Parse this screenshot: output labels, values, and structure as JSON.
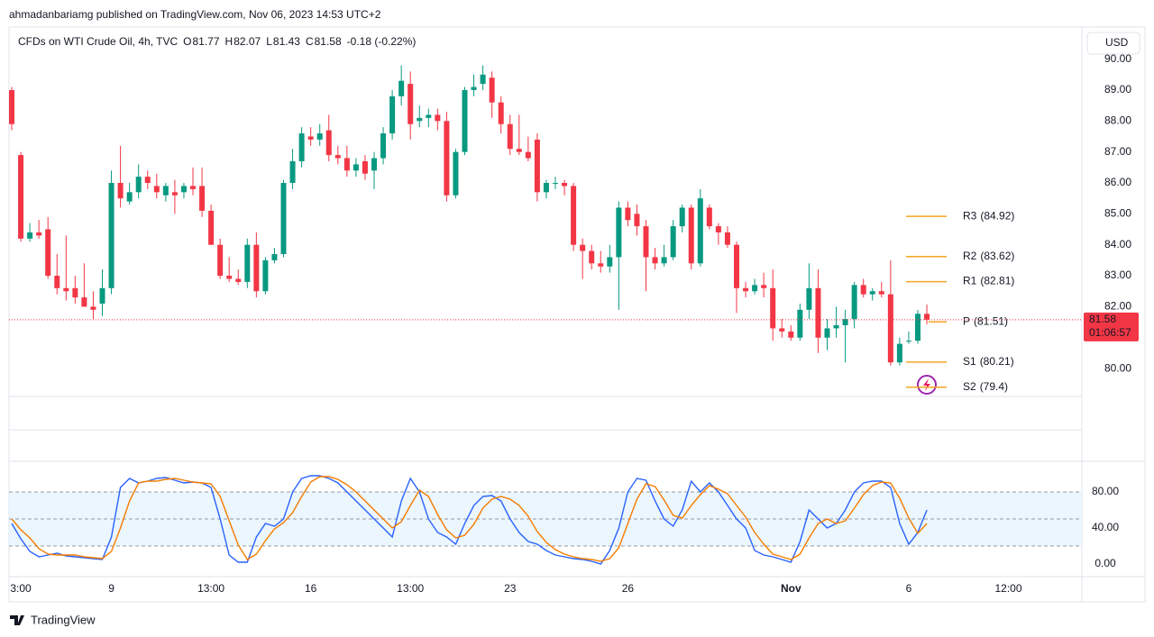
{
  "header": {
    "published": "ahmadanbariamg published on TradingView.com, Nov 06, 2023 14:53 UTC+2",
    "symbol": "CFDs on WTI Crude Oil, 4h, TVC",
    "legend": [
      {
        "key": "O",
        "value": 81.77
      },
      {
        "key": "H",
        "value": 82.07
      },
      {
        "key": "L",
        "value": 81.43
      },
      {
        "key": "C",
        "value": 81.58
      }
    ],
    "change": "-0.18 (-0.22%)",
    "currency": "USD"
  },
  "footer": {
    "brand": "TradingView"
  },
  "chart_data": [
    {
      "type": "candlestick",
      "up_color": "#089981",
      "down_color": "#f23645",
      "candles": [
        [
          89.0,
          89.1,
          87.7,
          87.9
        ],
        [
          86.9,
          87.0,
          84.1,
          84.2
        ],
        [
          84.2,
          84.7,
          84.1,
          84.4
        ],
        [
          84.4,
          84.8,
          84.2,
          84.3
        ],
        [
          84.5,
          84.9,
          82.9,
          83.0
        ],
        [
          83.0,
          83.7,
          82.4,
          82.6
        ],
        [
          82.6,
          84.3,
          82.2,
          82.5
        ],
        [
          82.6,
          83.0,
          82.1,
          82.3
        ],
        [
          82.3,
          83.4,
          82.0,
          82.0
        ],
        [
          82.0,
          82.5,
          81.6,
          81.9
        ],
        [
          82.1,
          83.2,
          81.7,
          82.6
        ],
        [
          82.6,
          86.4,
          82.4,
          86.0
        ],
        [
          86.0,
          87.2,
          85.2,
          85.5
        ],
        [
          85.4,
          86.0,
          85.3,
          85.7
        ],
        [
          85.7,
          86.6,
          85.5,
          86.2
        ],
        [
          86.2,
          86.4,
          85.8,
          86.0
        ],
        [
          85.9,
          86.3,
          85.5,
          85.7
        ],
        [
          85.6,
          86.0,
          85.4,
          85.9
        ],
        [
          85.7,
          86.1,
          85.0,
          85.6
        ],
        [
          85.7,
          86.0,
          85.5,
          85.9
        ],
        [
          85.9,
          86.5,
          85.6,
          85.8
        ],
        [
          85.9,
          86.5,
          84.9,
          85.1
        ],
        [
          85.1,
          85.3,
          84.0,
          84.0
        ],
        [
          84.0,
          84.2,
          82.9,
          83.0
        ],
        [
          83.0,
          83.6,
          82.8,
          82.9
        ],
        [
          82.9,
          83.2,
          82.7,
          82.8
        ],
        [
          82.8,
          84.2,
          82.6,
          84.0
        ],
        [
          84.0,
          84.4,
          82.3,
          82.5
        ],
        [
          82.5,
          83.6,
          82.4,
          83.5
        ],
        [
          83.5,
          83.9,
          83.4,
          83.7
        ],
        [
          83.7,
          86.1,
          83.6,
          86.0
        ],
        [
          86.0,
          87.1,
          85.8,
          86.7
        ],
        [
          86.7,
          87.8,
          86.5,
          87.6
        ],
        [
          87.5,
          87.8,
          87.2,
          87.4
        ],
        [
          87.4,
          87.9,
          87.2,
          87.6
        ],
        [
          87.7,
          88.2,
          86.7,
          86.9
        ],
        [
          86.9,
          87.2,
          86.6,
          86.8
        ],
        [
          86.8,
          87.2,
          86.2,
          86.4
        ],
        [
          86.4,
          86.8,
          86.2,
          86.6
        ],
        [
          86.7,
          86.9,
          86.1,
          86.3
        ],
        [
          86.4,
          87.0,
          85.8,
          86.8
        ],
        [
          86.8,
          87.8,
          86.6,
          87.6
        ],
        [
          87.6,
          89.0,
          87.4,
          88.8
        ],
        [
          88.8,
          89.8,
          88.5,
          89.3
        ],
        [
          89.2,
          89.6,
          87.4,
          87.9
        ],
        [
          88.0,
          88.5,
          87.8,
          88.1
        ],
        [
          88.1,
          88.4,
          87.8,
          88.2
        ],
        [
          88.2,
          88.4,
          87.7,
          88.0
        ],
        [
          88.0,
          88.3,
          85.4,
          85.6
        ],
        [
          85.6,
          87.1,
          85.5,
          87.0
        ],
        [
          87.0,
          89.1,
          86.9,
          89.0
        ],
        [
          89.0,
          89.5,
          88.8,
          89.1
        ],
        [
          89.2,
          89.8,
          89.0,
          89.5
        ],
        [
          89.4,
          89.6,
          88.1,
          88.6
        ],
        [
          88.6,
          88.8,
          87.6,
          87.9
        ],
        [
          87.9,
          88.2,
          86.9,
          87.1
        ],
        [
          87.1,
          88.2,
          86.9,
          87.0
        ],
        [
          87.0,
          87.5,
          86.7,
          86.8
        ],
        [
          87.4,
          87.6,
          85.4,
          85.7
        ],
        [
          85.7,
          86.1,
          85.5,
          86.0
        ],
        [
          86.0,
          86.2,
          85.8,
          86.0
        ],
        [
          86.0,
          86.1,
          85.6,
          85.9
        ],
        [
          85.9,
          86.0,
          83.8,
          84.0
        ],
        [
          84.0,
          84.2,
          82.9,
          83.8
        ],
        [
          83.8,
          84.0,
          83.2,
          83.4
        ],
        [
          83.4,
          83.8,
          83.1,
          83.3
        ],
        [
          83.3,
          84.0,
          83.1,
          83.6
        ],
        [
          83.6,
          85.4,
          81.9,
          85.2
        ],
        [
          85.2,
          85.4,
          84.6,
          84.8
        ],
        [
          85.0,
          85.3,
          84.3,
          84.6
        ],
        [
          84.6,
          84.8,
          82.5,
          83.6
        ],
        [
          83.6,
          83.9,
          83.2,
          83.4
        ],
        [
          83.4,
          84.0,
          83.3,
          83.6
        ],
        [
          83.6,
          84.8,
          83.5,
          84.6
        ],
        [
          84.6,
          85.3,
          84.4,
          85.2
        ],
        [
          85.2,
          85.3,
          83.2,
          83.4
        ],
        [
          83.4,
          85.8,
          83.3,
          85.5
        ],
        [
          85.2,
          85.3,
          84.5,
          84.6
        ],
        [
          84.6,
          84.7,
          84.0,
          84.4
        ],
        [
          84.4,
          84.6,
          83.9,
          84.0
        ],
        [
          84.0,
          84.1,
          81.8,
          82.6
        ],
        [
          82.6,
          82.8,
          82.3,
          82.5
        ],
        [
          82.5,
          82.9,
          82.4,
          82.7
        ],
        [
          82.7,
          83.1,
          82.3,
          82.6
        ],
        [
          82.6,
          83.2,
          80.9,
          81.3
        ],
        [
          81.3,
          81.6,
          81.0,
          81.2
        ],
        [
          81.2,
          81.4,
          80.9,
          81.0
        ],
        [
          81.0,
          82.1,
          80.9,
          81.9
        ],
        [
          81.9,
          83.4,
          81.6,
          82.6
        ],
        [
          82.6,
          83.2,
          80.5,
          81.0
        ],
        [
          81.0,
          81.6,
          80.6,
          81.3
        ],
        [
          81.3,
          82.0,
          81.0,
          81.4
        ],
        [
          81.4,
          81.9,
          80.2,
          81.6
        ],
        [
          81.6,
          82.8,
          81.3,
          82.7
        ],
        [
          82.7,
          82.9,
          82.3,
          82.4
        ],
        [
          82.4,
          82.6,
          82.2,
          82.5
        ],
        [
          82.5,
          82.8,
          82.3,
          82.4
        ],
        [
          82.4,
          83.5,
          80.1,
          80.2
        ],
        [
          80.2,
          81.0,
          80.1,
          80.8
        ],
        [
          80.9,
          81.2,
          80.8,
          80.9
        ],
        [
          80.9,
          81.9,
          80.8,
          81.77
        ],
        [
          81.77,
          82.07,
          81.43,
          81.58
        ]
      ],
      "ylim": [
        79.1,
        90.95
      ],
      "yticks": [
        {
          "value": 80,
          "label": "80.00"
        },
        {
          "value": 81,
          "label": "81.00"
        },
        {
          "value": 82,
          "label": "82.00"
        },
        {
          "value": 83,
          "label": "83.00"
        },
        {
          "value": 84,
          "label": "84.00"
        },
        {
          "value": 85,
          "label": "85.00"
        },
        {
          "value": 86,
          "label": "86.00"
        },
        {
          "value": 87,
          "label": "87.00"
        },
        {
          "value": 88,
          "label": "88.00"
        },
        {
          "value": 89,
          "label": "89.00"
        },
        {
          "value": 90,
          "label": "90.00"
        }
      ],
      "last": {
        "value": 81.58,
        "countdown": "01:06:57",
        "color": "#f23645"
      },
      "pivots": {
        "color": "#f5a623",
        "levels": [
          {
            "name": "R3",
            "value": 84.92,
            "label": "(84.92)"
          },
          {
            "name": "R2",
            "value": 83.62,
            "label": "(83.62)"
          },
          {
            "name": "R1",
            "value": 82.81,
            "label": "(82.81)"
          },
          {
            "name": "P",
            "value": 81.51,
            "label": "(81.51)"
          },
          {
            "name": "S1",
            "value": 80.21,
            "label": "(80.21)"
          },
          {
            "name": "S2",
            "value": 79.4,
            "label": "(79.4)"
          }
        ]
      },
      "grid": false
    },
    {
      "type": "line",
      "ylim": [
        -14,
        114
      ],
      "yticks": [
        {
          "value": 0,
          "label": "0.00"
        },
        {
          "value": 40,
          "label": "40.00"
        },
        {
          "value": 80,
          "label": "80.00"
        }
      ],
      "levels": [
        80,
        50,
        20
      ],
      "band_color": "#e3f2fd",
      "series": [
        {
          "color": "#2962ff",
          "values": [
            45,
            28,
            14,
            8,
            10,
            12,
            9,
            8,
            7,
            6,
            5,
            30,
            85,
            95,
            90,
            92,
            95,
            96,
            93,
            90,
            91,
            90,
            85,
            50,
            10,
            2,
            2,
            30,
            45,
            42,
            50,
            80,
            95,
            98,
            98,
            95,
            90,
            80,
            70,
            60,
            50,
            40,
            30,
            70,
            95,
            80,
            50,
            35,
            30,
            22,
            45,
            65,
            75,
            76,
            70,
            50,
            35,
            25,
            22,
            15,
            10,
            8,
            6,
            5,
            3,
            0,
            15,
            40,
            80,
            95,
            93,
            70,
            50,
            42,
            60,
            92,
            80,
            90,
            80,
            65,
            50,
            40,
            15,
            10,
            8,
            5,
            2,
            25,
            60,
            50,
            40,
            45,
            60,
            80,
            90,
            92,
            92,
            85,
            45,
            22,
            35,
            60
          ]
        },
        {
          "color": "#f57c00",
          "values": [
            50,
            38,
            29,
            17,
            11,
            10,
            10,
            10,
            8,
            7,
            6,
            14,
            40,
            70,
            90,
            92,
            92,
            94,
            95,
            93,
            91,
            90,
            89,
            75,
            48,
            21,
            5,
            11,
            26,
            39,
            46,
            57,
            75,
            91,
            97,
            97,
            94,
            88,
            80,
            70,
            60,
            50,
            40,
            47,
            65,
            82,
            75,
            55,
            38,
            29,
            32,
            44,
            62,
            72,
            75,
            72,
            65,
            53,
            36,
            24,
            16,
            11,
            8,
            6,
            5,
            3,
            6,
            18,
            45,
            72,
            89,
            86,
            71,
            54,
            51,
            65,
            77,
            87,
            83,
            78,
            65,
            52,
            35,
            22,
            11,
            8,
            5,
            11,
            29,
            45,
            50,
            45,
            48,
            62,
            77,
            87,
            91,
            90,
            73,
            51,
            34,
            45
          ]
        }
      ],
      "xticks": [
        {
          "value": 1,
          "label": "3:00"
        },
        {
          "value": 11,
          "label": "9"
        },
        {
          "value": 22,
          "label": "13:00"
        },
        {
          "value": 33,
          "label": "16"
        },
        {
          "value": 44,
          "label": "13:00"
        },
        {
          "value": 55,
          "label": "23"
        },
        {
          "value": 68,
          "label": "26"
        },
        {
          "value": 86,
          "label": "Nov"
        },
        {
          "value": 99,
          "label": "6"
        },
        {
          "value": 110,
          "label": "12:00"
        }
      ]
    }
  ]
}
